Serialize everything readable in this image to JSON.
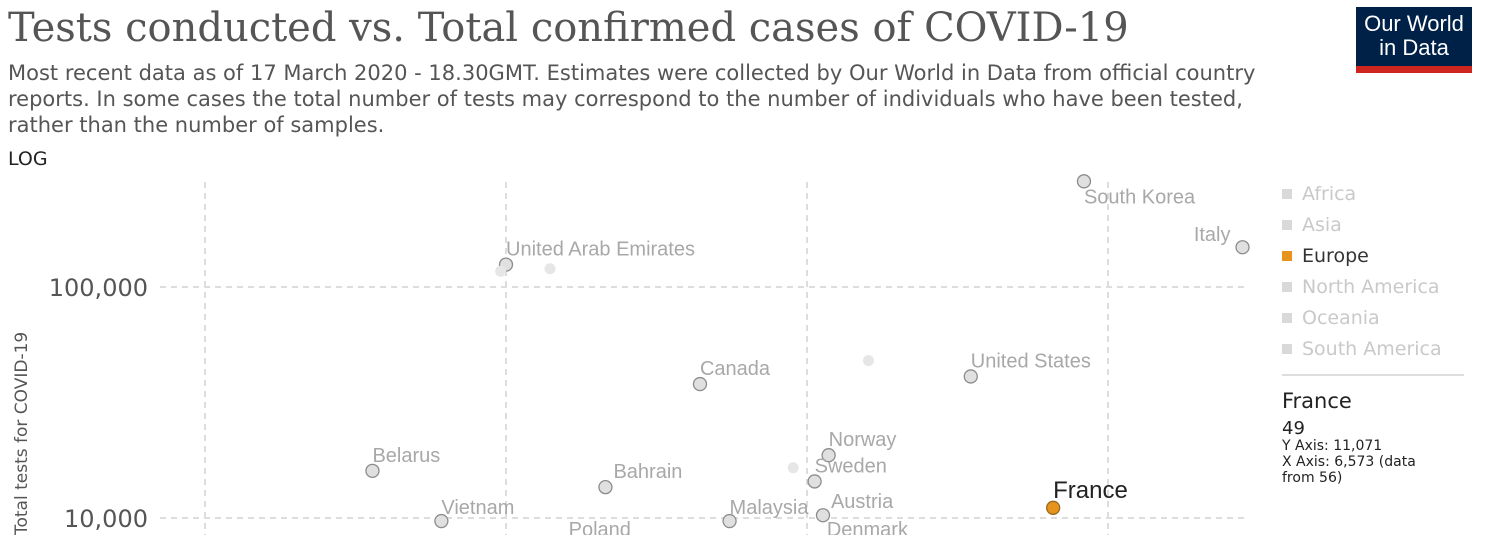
{
  "header": {
    "title": "Tests conducted vs. Total confirmed cases of COVID-19",
    "subtitle": "Most recent data as of 17 March 2020 - 18.30GMT. Estimates were collected by Our World in Data from official country reports. In some cases the total number of tests may correspond to the number of individuals who have been tested, rather than the number of samples.",
    "logo_line1": "Our World",
    "logo_line2": "in Data",
    "logo_bg": "#002147",
    "logo_stripe": "#ce261e"
  },
  "controls": {
    "scale_toggle": "LOG"
  },
  "legend": {
    "items": [
      {
        "label": "Africa",
        "active": false
      },
      {
        "label": "Asia",
        "active": false
      },
      {
        "label": "Europe",
        "active": true
      },
      {
        "label": "North America",
        "active": false
      },
      {
        "label": "Oceania",
        "active": false
      },
      {
        "label": "South America",
        "active": false
      }
    ],
    "active_color": "#e7941f",
    "inactive_color": "#d9d9d9"
  },
  "tooltip": {
    "entity": "France",
    "size_value": "49",
    "y_line": "Y Axis: 11,071",
    "x_line": "X Axis: 6,573 (data",
    "x_line2": "from 56)"
  },
  "chart_data": {
    "type": "scatter",
    "title": "Tests conducted vs. Total confirmed cases of COVID-19",
    "xlabel": "",
    "ylabel": "Total tests for COVID-19",
    "y_scale": "log",
    "x_scale": "log",
    "y_tick_labels": [
      {
        "value": 10000,
        "label": "10,000"
      },
      {
        "value": 100000,
        "label": "100,000"
      }
    ],
    "x_gridlines": [
      10,
      100,
      1000,
      10000
    ],
    "grid": true,
    "legend_position": "right",
    "points": [
      {
        "label": "South Korea",
        "x": 8320,
        "y": 286716,
        "highlight": false
      },
      {
        "label": "Italy",
        "x": 27980,
        "y": 148657,
        "highlight": false
      },
      {
        "label": "United Arab Emirates",
        "x": 100,
        "y": 125000,
        "highlight": false
      },
      {
        "label": "",
        "x": 96,
        "y": 117000,
        "highlight": false
      },
      {
        "label": "",
        "x": 140,
        "y": 120000,
        "highlight": false
      },
      {
        "label": "",
        "x": 1600,
        "y": 48000,
        "highlight": false
      },
      {
        "label": "Canada",
        "x": 441,
        "y": 38000,
        "highlight": false
      },
      {
        "label": "United States",
        "x": 3500,
        "y": 41000,
        "highlight": false
      },
      {
        "label": "Belarus",
        "x": 36,
        "y": 16000,
        "highlight": false
      },
      {
        "label": "Bahrain",
        "x": 214,
        "y": 13600,
        "highlight": false
      },
      {
        "label": "",
        "x": 900,
        "y": 16500,
        "highlight": false
      },
      {
        "label": "Norway",
        "x": 1180,
        "y": 18700,
        "highlight": false
      },
      {
        "label": "Sweden",
        "x": 1060,
        "y": 14400,
        "highlight": false
      },
      {
        "label": "Austria",
        "x": 1130,
        "y": 10280,
        "highlight": false
      },
      {
        "label": "Vietnam",
        "x": 61,
        "y": 9700,
        "highlight": false
      },
      {
        "label": "Malaysia",
        "x": 553,
        "y": 9700,
        "highlight": false
      },
      {
        "label": "France",
        "x": 6573,
        "y": 11071,
        "highlight": true
      }
    ],
    "partial_labels": [
      {
        "label": "Poland",
        "x": 200,
        "y": 8400
      },
      {
        "label": "Denmark",
        "x": 1200,
        "y": 8300
      }
    ]
  }
}
